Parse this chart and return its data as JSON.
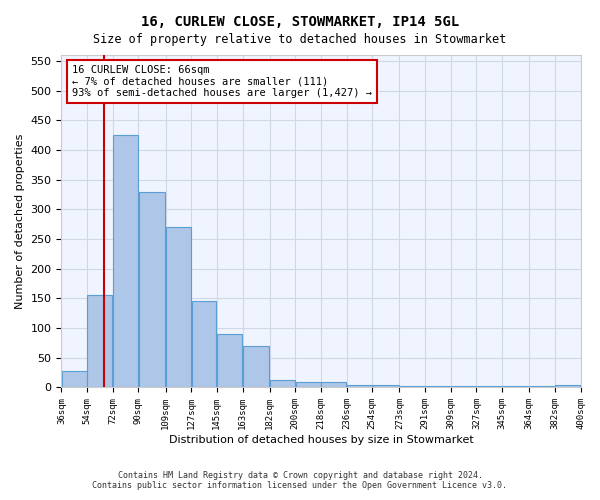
{
  "title1": "16, CURLEW CLOSE, STOWMARKET, IP14 5GL",
  "title2": "Size of property relative to detached houses in Stowmarket",
  "xlabel": "Distribution of detached houses by size in Stowmarket",
  "ylabel": "Number of detached properties",
  "footer1": "Contains HM Land Registry data © Crown copyright and database right 2024.",
  "footer2": "Contains public sector information licensed under the Open Government Licence v3.0.",
  "annotation_line1": "16 CURLEW CLOSE: 66sqm",
  "annotation_line2": "← 7% of detached houses are smaller (111)",
  "annotation_line3": "93% of semi-detached houses are larger (1,427) →",
  "bar_left_edges": [
    36,
    54,
    72,
    90,
    109,
    127,
    145,
    163,
    182,
    200,
    218,
    236,
    254,
    273,
    291,
    309,
    327,
    345,
    364,
    382
  ],
  "bar_widths": [
    18,
    18,
    18,
    19,
    18,
    18,
    18,
    19,
    18,
    18,
    18,
    18,
    19,
    18,
    18,
    18,
    18,
    19,
    18,
    18
  ],
  "bar_heights": [
    28,
    155,
    425,
    330,
    270,
    145,
    90,
    70,
    13,
    10,
    10,
    5,
    5,
    2,
    2,
    2,
    2,
    2,
    2,
    5
  ],
  "bar_color": "#aec6e8",
  "bar_edge_color": "#5a9fd4",
  "grid_color": "#d0d8e8",
  "background_color": "#f0f4ff",
  "vline_x": 66,
  "vline_color": "#cc0000",
  "ylim": [
    0,
    560
  ],
  "xlim": [
    36,
    400
  ],
  "tick_labels": [
    "36sqm",
    "54sqm",
    "72sqm",
    "90sqm",
    "109sqm",
    "127sqm",
    "145sqm",
    "163sqm",
    "182sqm",
    "200sqm",
    "218sqm",
    "236sqm",
    "254sqm",
    "273sqm",
    "291sqm",
    "309sqm",
    "327sqm",
    "345sqm",
    "364sqm",
    "382sqm",
    "400sqm"
  ],
  "tick_positions": [
    36,
    54,
    72,
    90,
    109,
    127,
    145,
    163,
    182,
    200,
    218,
    236,
    254,
    273,
    291,
    309,
    327,
    345,
    364,
    382,
    400
  ],
  "annotation_box_color": "#ffffff",
  "annotation_box_edge_color": "#cc0000"
}
